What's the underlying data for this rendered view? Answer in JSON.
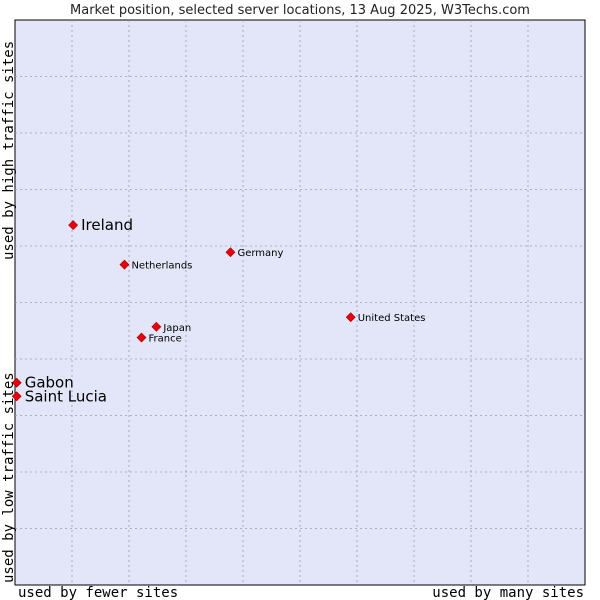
{
  "chart_data": {
    "type": "scatter",
    "title": "Market position, selected server locations, 13 Aug 2025, W3Techs.com",
    "xlabel_left": "used by fewer sites",
    "xlabel_right": "used by many sites",
    "ylabel_low": "used by low traffic sites",
    "ylabel_high": "used by high traffic sites",
    "xlim": [
      0,
      100
    ],
    "ylim": [
      0,
      100
    ],
    "grid": true,
    "point_color": "#e8000d",
    "plot_bg": "#e3e6f8",
    "points": [
      {
        "label": "Ireland",
        "x": 10.2,
        "y": 63.7,
        "size": "large",
        "label_side": "right"
      },
      {
        "label": "Germany",
        "x": 37.8,
        "y": 58.9,
        "size": "small",
        "label_side": "right"
      },
      {
        "label": "Netherlands",
        "x": 19.2,
        "y": 56.7,
        "size": "small",
        "label_side": "right"
      },
      {
        "label": "United States",
        "x": 58.9,
        "y": 47.4,
        "size": "small",
        "label_side": "right"
      },
      {
        "label": "Japan",
        "x": 24.8,
        "y": 45.7,
        "size": "small",
        "label_side": "right"
      },
      {
        "label": "France",
        "x": 22.2,
        "y": 43.8,
        "size": "small",
        "label_side": "right"
      },
      {
        "label": "Gabon",
        "x": 0.3,
        "y": 35.8,
        "size": "large",
        "label_side": "right"
      },
      {
        "label": "Saint Lucia",
        "x": 0.3,
        "y": 33.4,
        "size": "large",
        "label_side": "right"
      }
    ]
  }
}
